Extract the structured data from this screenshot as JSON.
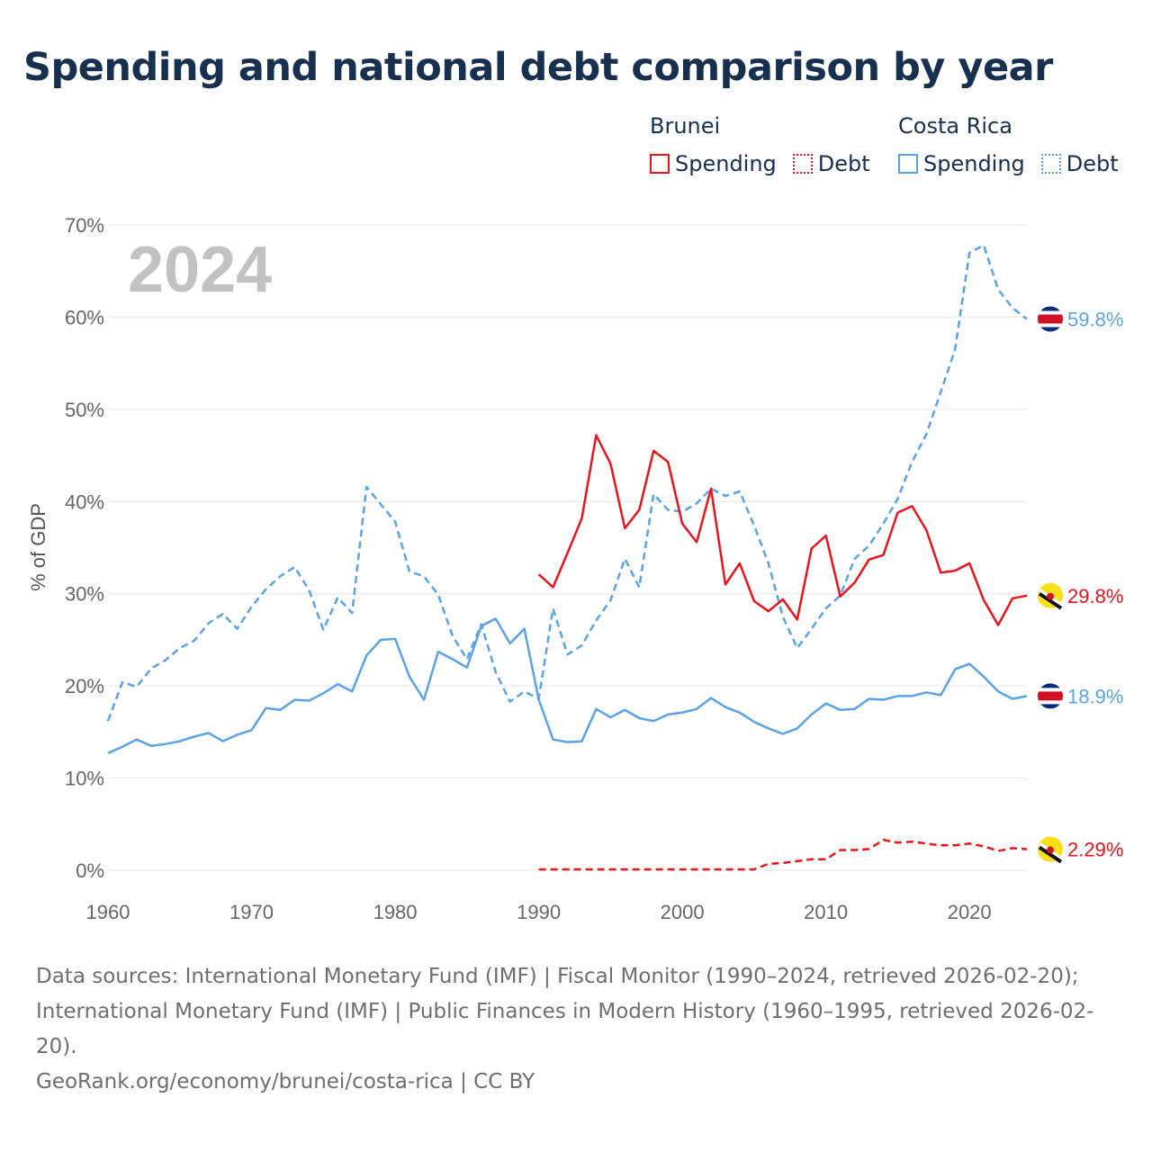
{
  "title": "Spending and national debt comparison by year",
  "legend": {
    "groups": [
      {
        "country": "Brunei",
        "spending_label": "Spending",
        "debt_label": "Debt",
        "color": "#e8141e"
      },
      {
        "country": "Costa Rica",
        "spending_label": "Spending",
        "debt_label": "Debt",
        "color": "#5ba3e6"
      }
    ]
  },
  "year_label": "2024",
  "footer": {
    "sources": "Data sources: International Monetary Fund (IMF) | Fiscal Monitor (1990–2024, retrieved 2026-02-20); International Monetary Fund (IMF) | Public Finances in Modern History (1960–1995, retrieved 2026-02-20).",
    "credit": "GeoRank.org/economy/brunei/costa-rica | CC BY"
  },
  "chart_data": {
    "type": "line",
    "title": "Spending and national debt comparison by year",
    "xlabel": "",
    "ylabel": "% of GDP",
    "xlim": [
      1960,
      2024
    ],
    "ylim": [
      0,
      70
    ],
    "x_ticks": [
      1960,
      1970,
      1980,
      1990,
      2000,
      2010,
      2020
    ],
    "y_ticks": [
      0,
      10,
      20,
      30,
      40,
      50,
      60,
      70
    ],
    "y_tick_labels": [
      "0%",
      "10%",
      "20%",
      "30%",
      "40%",
      "50%",
      "60%",
      "70%"
    ],
    "grid": true,
    "series": [
      {
        "name": "Costa Rica Debt",
        "country": "Costa Rica",
        "kind": "Debt",
        "color": "#5ba3e6",
        "style": "dashed",
        "end_label": "59.8%",
        "flag": "costa-rica",
        "x": [
          1960,
          1961,
          1962,
          1963,
          1964,
          1965,
          1966,
          1967,
          1968,
          1969,
          1970,
          1971,
          1972,
          1973,
          1974,
          1975,
          1976,
          1977,
          1978,
          1979,
          1980,
          1981,
          1982,
          1983,
          1984,
          1985,
          1986,
          1987,
          1988,
          1989,
          1990,
          1991,
          1992,
          1993,
          1994,
          1995,
          1996,
          1997,
          1998,
          1999,
          2000,
          2001,
          2002,
          2003,
          2004,
          2005,
          2006,
          2007,
          2008,
          2009,
          2010,
          2011,
          2012,
          2013,
          2014,
          2015,
          2016,
          2017,
          2018,
          2019,
          2020,
          2021,
          2022,
          2023,
          2024
        ],
        "values": [
          16.2,
          20.4,
          19.9,
          21.9,
          22.8,
          24.1,
          24.9,
          26.8,
          27.8,
          26.2,
          28.6,
          30.5,
          31.9,
          32.9,
          30.4,
          26.1,
          29.6,
          27.9,
          41.6,
          39.7,
          37.8,
          32.4,
          31.9,
          29.9,
          25.4,
          22.9,
          26.7,
          21.5,
          18.3,
          19.4,
          18.6,
          28.4,
          23.4,
          24.4,
          27.1,
          29.3,
          33.8,
          30.7,
          40.8,
          39.1,
          38.9,
          39.8,
          41.4,
          40.6,
          41.1,
          37.4,
          33.3,
          27.5,
          24.1,
          26.2,
          28.4,
          29.8,
          33.8,
          35.2,
          37.6,
          40.3,
          44.3,
          47.3,
          51.9,
          56.5,
          67.0,
          67.8,
          63.0,
          61.0,
          59.8
        ]
      },
      {
        "name": "Costa Rica Spending",
        "country": "Costa Rica",
        "kind": "Spending",
        "color": "#5ba3e6",
        "style": "solid",
        "end_label": "18.9%",
        "flag": "costa-rica",
        "x": [
          1960,
          1961,
          1962,
          1963,
          1964,
          1965,
          1966,
          1967,
          1968,
          1969,
          1970,
          1971,
          1972,
          1973,
          1974,
          1975,
          1976,
          1977,
          1978,
          1979,
          1980,
          1981,
          1982,
          1983,
          1984,
          1985,
          1986,
          1987,
          1988,
          1989,
          1990,
          1991,
          1992,
          1993,
          1994,
          1995,
          1996,
          1997,
          1998,
          1999,
          2000,
          2001,
          2002,
          2003,
          2004,
          2005,
          2006,
          2007,
          2008,
          2009,
          2010,
          2011,
          2012,
          2013,
          2014,
          2015,
          2016,
          2017,
          2018,
          2019,
          2020,
          2021,
          2022,
          2023,
          2024
        ],
        "values": [
          12.7,
          13.4,
          14.2,
          13.5,
          13.7,
          14.0,
          14.5,
          14.9,
          14.0,
          14.7,
          15.2,
          17.6,
          17.4,
          18.5,
          18.4,
          19.2,
          20.2,
          19.4,
          23.3,
          25.0,
          25.1,
          21.0,
          18.5,
          23.7,
          22.9,
          22.0,
          26.5,
          27.3,
          24.6,
          26.2,
          18.5,
          14.2,
          13.9,
          14.0,
          17.5,
          16.6,
          17.4,
          16.5,
          16.2,
          16.9,
          17.1,
          17.5,
          18.7,
          17.7,
          17.1,
          16.1,
          15.4,
          14.8,
          15.4,
          16.9,
          18.1,
          17.4,
          17.5,
          18.6,
          18.5,
          18.9,
          18.9,
          19.3,
          19.0,
          21.8,
          22.4,
          21.0,
          19.4,
          18.6,
          18.9
        ]
      },
      {
        "name": "Brunei Spending",
        "country": "Brunei",
        "kind": "Spending",
        "color": "#e8141e",
        "style": "solid",
        "end_label": "29.8%",
        "flag": "brunei",
        "x": [
          1990,
          1991,
          1992,
          1993,
          1994,
          1995,
          1996,
          1997,
          1998,
          1999,
          2000,
          2001,
          2002,
          2003,
          2004,
          2005,
          2006,
          2007,
          2008,
          2009,
          2010,
          2011,
          2012,
          2013,
          2014,
          2015,
          2016,
          2017,
          2018,
          2019,
          2020,
          2021,
          2022,
          2023,
          2024
        ],
        "values": [
          32.1,
          30.7,
          34.4,
          38.2,
          47.2,
          44.1,
          37.1,
          39.1,
          45.5,
          44.3,
          37.6,
          35.6,
          41.4,
          31.0,
          33.3,
          29.2,
          28.1,
          29.4,
          27.2,
          34.9,
          36.3,
          29.7,
          31.2,
          33.7,
          34.2,
          38.8,
          39.5,
          36.9,
          32.3,
          32.5,
          33.3,
          29.3,
          26.6,
          29.5,
          29.8
        ]
      },
      {
        "name": "Brunei Debt",
        "country": "Brunei",
        "kind": "Debt",
        "color": "#e8141e",
        "style": "dashed",
        "end_label": "2.29%",
        "flag": "brunei",
        "x": [
          1990,
          1991,
          1992,
          1993,
          1994,
          1995,
          1996,
          1997,
          1998,
          1999,
          2000,
          2001,
          2002,
          2003,
          2004,
          2005,
          2006,
          2007,
          2008,
          2009,
          2010,
          2011,
          2012,
          2013,
          2014,
          2015,
          2016,
          2017,
          2018,
          2019,
          2020,
          2021,
          2022,
          2023,
          2024
        ],
        "values": [
          0.1,
          0.1,
          0.1,
          0.1,
          0.1,
          0.1,
          0.1,
          0.1,
          0.1,
          0.1,
          0.1,
          0.1,
          0.1,
          0.1,
          0.1,
          0.1,
          0.7,
          0.8,
          1.0,
          1.2,
          1.2,
          2.2,
          2.2,
          2.3,
          3.3,
          3.0,
          3.1,
          2.9,
          2.7,
          2.7,
          2.9,
          2.6,
          2.1,
          2.4,
          2.29
        ]
      }
    ]
  }
}
